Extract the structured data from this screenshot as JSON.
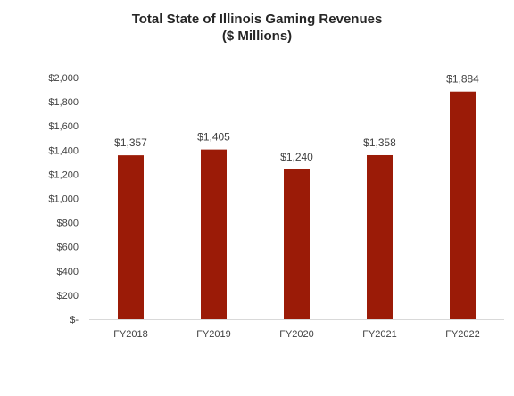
{
  "chart_data": {
    "type": "bar",
    "title": "Total State of Illinois Gaming Revenues",
    "subtitle": "($ Millions)",
    "xlabel": "",
    "ylabel": "",
    "categories": [
      "FY2018",
      "FY2019",
      "FY2020",
      "FY2021",
      "FY2022"
    ],
    "values": [
      1357,
      1405,
      1240,
      1358,
      1884
    ],
    "data_labels": [
      "$1,357",
      "$1,405",
      "$1,240",
      "$1,358",
      "$1,884"
    ],
    "ylim": [
      0,
      2000
    ],
    "yticks": [
      0,
      200,
      400,
      600,
      800,
      1000,
      1200,
      1400,
      1600,
      1800,
      2000
    ],
    "ytick_labels": [
      "$-",
      "$200",
      "$400",
      "$600",
      "$800",
      "$1,000",
      "$1,200",
      "$1,400",
      "$1,600",
      "$1,800",
      "$2,000"
    ],
    "grid": false,
    "legend": "none",
    "bar_color": "#9b1b07",
    "axis_color": "#d9d9d9"
  }
}
